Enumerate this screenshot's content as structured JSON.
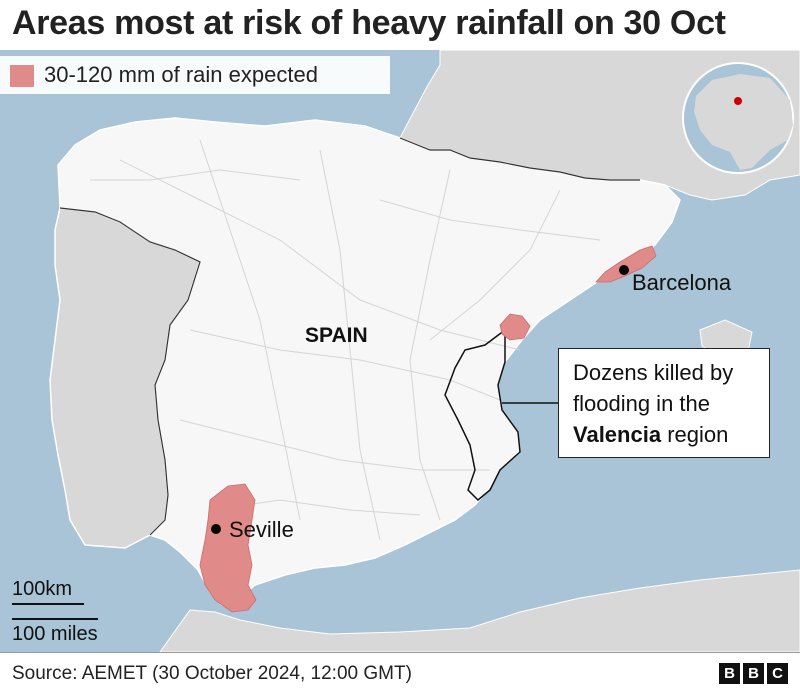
{
  "title": "Areas most at risk of heavy rainfall on 30 Oct",
  "legend": {
    "label": "30-120 mm of rain expected",
    "color": "#e08a8a"
  },
  "colors": {
    "sea": "#a9c4d6",
    "land_spain": "#f7f7f7",
    "land_other": "#d8d8d8",
    "rain_area": "#e08a8a"
  },
  "places": {
    "country": "SPAIN",
    "barcelona": "Barcelona",
    "seville": "Seville"
  },
  "callout": {
    "line1": "Dozens killed by",
    "line2": "flooding in the",
    "line3_bold": "Valencia",
    "line3_rest": " region"
  },
  "scale": {
    "km": "100km",
    "miles": "100 miles"
  },
  "source": "Source: AEMET (30 October 2024, 12:00 GMT)",
  "logo": [
    "B",
    "B",
    "C"
  ],
  "inset": {
    "icon": "globe-locator-icon"
  }
}
